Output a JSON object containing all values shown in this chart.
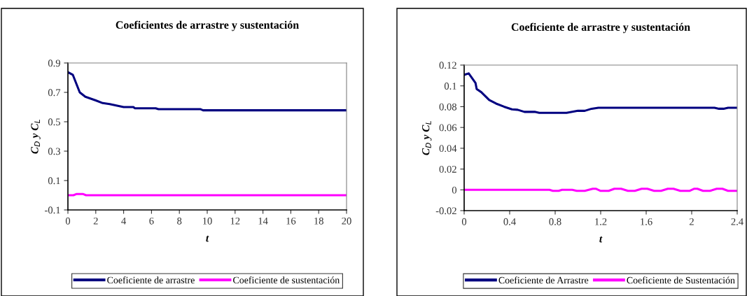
{
  "chart_data": [
    {
      "type": "line",
      "title": "Coeficientes de arrastre y sustentación",
      "xlabel": "t",
      "ylabel": "C$_{D}$ y C$_{L}$",
      "xlim": [
        0,
        20
      ],
      "xticks": [
        0,
        2,
        4,
        6,
        8,
        10,
        12,
        14,
        16,
        18,
        20
      ],
      "ylim": [
        -0.1,
        0.9
      ],
      "yticks": [
        -0.1,
        0.1,
        0.3,
        0.5,
        0.7,
        0.9
      ],
      "grid": false,
      "legend": "bottom",
      "marker": "none",
      "line_style": "solid",
      "series": [
        {
          "name": "Coeficiente de arrastre",
          "color": "#000080",
          "x": [
            0,
            0.35,
            0.85,
            1.25,
            2,
            2.5,
            3,
            4,
            4.7,
            4.8,
            6.3,
            6.5,
            9.5,
            9.7,
            20
          ],
          "values": [
            0.837,
            0.82,
            0.7,
            0.67,
            0.645,
            0.627,
            0.62,
            0.6,
            0.6,
            0.592,
            0.592,
            0.586,
            0.586,
            0.578,
            0.578
          ]
        },
        {
          "name": "Coeficiente de sustentación",
          "color": "#ff00ff",
          "x": [
            0,
            0.4,
            0.6,
            1.1,
            1.3,
            20
          ],
          "values": [
            0,
            0,
            0.008,
            0.008,
            0,
            0
          ]
        }
      ]
    },
    {
      "type": "line",
      "title": "Coeficiente de arrastre y sustentación",
      "xlabel": "t",
      "ylabel": "C$_{D}$ y C$_{L}$",
      "xlim": [
        0,
        2.4
      ],
      "xticks": [
        0,
        0.4,
        0.8,
        1.2,
        1.6,
        2,
        2.4
      ],
      "ylim": [
        -0.02,
        0.12
      ],
      "yticks": [
        -0.02,
        0,
        0.02,
        0.04,
        0.06,
        0.08,
        0.1,
        0.12
      ],
      "grid": false,
      "legend": "bottom",
      "marker": "none",
      "line_style": "solid",
      "series": [
        {
          "name": "Coeficiente de Arrastre",
          "color": "#000080",
          "x": [
            0,
            0.04,
            0.1,
            0.11,
            0.15,
            0.22,
            0.28,
            0.35,
            0.42,
            0.47,
            0.53,
            0.62,
            0.66,
            0.9,
            1.0,
            1.06,
            1.12,
            1.18,
            2.2,
            2.24,
            2.28,
            2.32,
            2.4
          ],
          "values": [
            0.1106,
            0.112,
            0.1027,
            0.097,
            0.094,
            0.0864,
            0.083,
            0.08,
            0.0774,
            0.077,
            0.075,
            0.075,
            0.074,
            0.074,
            0.076,
            0.076,
            0.078,
            0.079,
            0.079,
            0.078,
            0.078,
            0.079,
            0.079
          ]
        },
        {
          "name": "Coeficiente de Sustentación",
          "color": "#ff00ff",
          "x": [
            0,
            0.75,
            0.78,
            0.83,
            0.86,
            0.95,
            0.99,
            1.06,
            1.13,
            1.16,
            1.2,
            1.27,
            1.32,
            1.38,
            1.44,
            1.5,
            1.56,
            1.61,
            1.67,
            1.73,
            1.79,
            1.84,
            1.9,
            1.98,
            2.02,
            2.05,
            2.1,
            2.16,
            2.22,
            2.27,
            2.32,
            2.4
          ],
          "values": [
            0,
            0,
            -0.001,
            -0.001,
            0,
            0,
            -0.001,
            -0.001,
            0.001,
            0.001,
            -0.001,
            -0.001,
            0.001,
            0.001,
            -0.001,
            -0.001,
            0.001,
            0.001,
            -0.001,
            -0.001,
            0.001,
            0.001,
            -0.001,
            -0.001,
            0.001,
            0.001,
            -0.001,
            -0.001,
            0.001,
            0.001,
            -0.001,
            -0.001
          ]
        }
      ]
    }
  ]
}
